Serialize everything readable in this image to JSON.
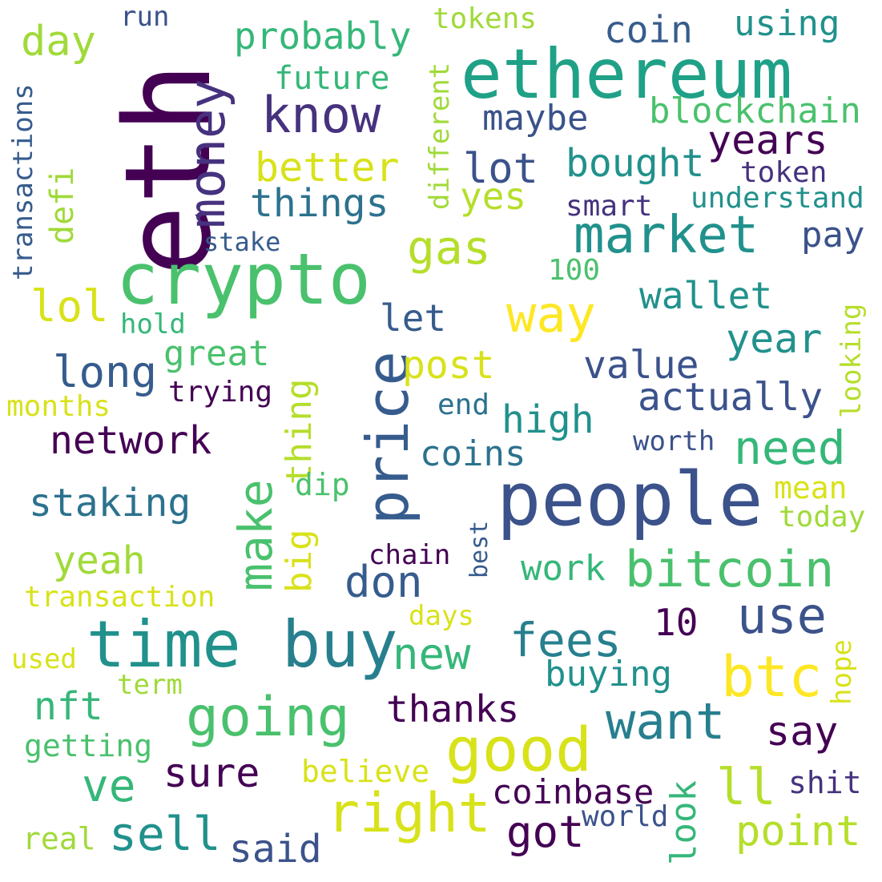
{
  "words": {
    "eth": "eth",
    "ethereum": "ethereum",
    "crypto": "crypto",
    "money": "money",
    "know": "know",
    "market": "market",
    "people": "people",
    "price": "price",
    "time": "time",
    "buy": "buy",
    "good": "good",
    "going": "going",
    "right": "right",
    "btc": "btc",
    "make": "make",
    "bitcoin": "bitcoin",
    "use": "use",
    "want": "want",
    "fees": "fees",
    "way": "way",
    "years": "years",
    "gas": "gas",
    "lol": "lol",
    "long": "long",
    "need": "need",
    "network": "network",
    "staking": "staking",
    "yeah": "yeah",
    "don": "don",
    "sell": "sell",
    "sure": "sure",
    "ve": "ve",
    "new": "new",
    "thanks": "thanks",
    "say": "say",
    "ll": "ll",
    "got": "got",
    "point": "point",
    "said": "said",
    "coinbase": "coinbase",
    "look": "look",
    "thing": "thing",
    "big": "big",
    "post": "post",
    "value": "value",
    "actually": "actually",
    "high": "high",
    "coins": "coins",
    "year": "year",
    "wallet": "wallet",
    "let": "let",
    "great": "great",
    "things": "things",
    "better": "better",
    "lot": "lot",
    "yes": "yes",
    "bought": "bought",
    "blockchain": "blockchain",
    "maybe": "maybe",
    "coin": "coin",
    "using": "using",
    "probably": "probably",
    "future": "future",
    "day": "day",
    "tokens": "tokens",
    "run": "run",
    "transactions": "transactions",
    "defi": "defi",
    "different": "different",
    "token": "token",
    "understand": "understand",
    "smart": "smart",
    "pay": "pay",
    "stake": "stake",
    "100": "100",
    "hold": "hold",
    "trying": "trying",
    "months": "months",
    "end": "end",
    "worth": "worth",
    "dip": "dip",
    "mean": "mean",
    "today": "today",
    "looking": "looking",
    "chain": "chain",
    "best": "best",
    "work": "work",
    "transaction": "transaction",
    "days": "days",
    "10": "10",
    "used": "used",
    "term": "term",
    "buying": "buying",
    "hope": "hope",
    "nft": "nft",
    "getting": "getting",
    "believe": "believe",
    "shit": "shit",
    "world": "world",
    "real": "real"
  },
  "palette": [
    "#440154",
    "#46327e",
    "#365c8d",
    "#277f8e",
    "#1fa187",
    "#4ac16d",
    "#a0da39",
    "#fde725",
    "#b5de2b",
    "#35b779",
    "#3b528b",
    "#2c728e",
    "#21918c",
    "#d8e219"
  ]
}
